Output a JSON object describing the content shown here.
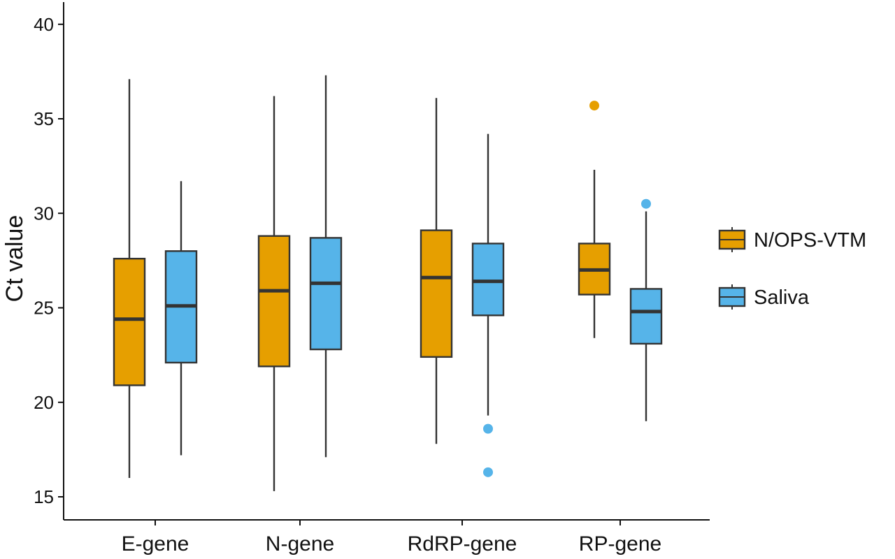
{
  "chart_data": {
    "type": "boxplot",
    "ylabel": "Ct value",
    "xlabel": "",
    "ylim": [
      14.0,
      41.0
    ],
    "yticks": [
      15,
      20,
      25,
      30,
      35,
      40
    ],
    "grid": false,
    "legend_position": "right",
    "categories": [
      "E-gene",
      "N-gene",
      "RdRP-gene",
      "RP-gene"
    ],
    "series": [
      {
        "name": "N/OPS-VTM",
        "color": "#E69F00",
        "boxes": [
          {
            "whisker_low": 16.0,
            "q1": 20.9,
            "median": 24.4,
            "q3": 27.6,
            "whisker_high": 37.1,
            "outliers": []
          },
          {
            "whisker_low": 15.3,
            "q1": 21.9,
            "median": 25.9,
            "q3": 28.8,
            "whisker_high": 36.2,
            "outliers": []
          },
          {
            "whisker_low": 17.8,
            "q1": 22.4,
            "median": 26.6,
            "q3": 29.1,
            "whisker_high": 36.1,
            "outliers": []
          },
          {
            "whisker_low": 23.4,
            "q1": 25.7,
            "median": 27.0,
            "q3": 28.4,
            "whisker_high": 32.3,
            "outliers": [
              35.7
            ]
          }
        ]
      },
      {
        "name": "Saliva",
        "color": "#56B4E9",
        "boxes": [
          {
            "whisker_low": 17.2,
            "q1": 22.1,
            "median": 25.1,
            "q3": 28.0,
            "whisker_high": 31.7,
            "outliers": []
          },
          {
            "whisker_low": 17.1,
            "q1": 22.8,
            "median": 26.3,
            "q3": 28.7,
            "whisker_high": 37.3,
            "outliers": []
          },
          {
            "whisker_low": 19.3,
            "q1": 24.6,
            "median": 26.4,
            "q3": 28.4,
            "whisker_high": 34.2,
            "outliers": [
              18.6,
              16.3
            ]
          },
          {
            "whisker_low": 19.0,
            "q1": 23.1,
            "median": 24.8,
            "q3": 26.0,
            "whisker_high": 30.1,
            "outliers": [
              30.5
            ]
          }
        ]
      }
    ]
  }
}
